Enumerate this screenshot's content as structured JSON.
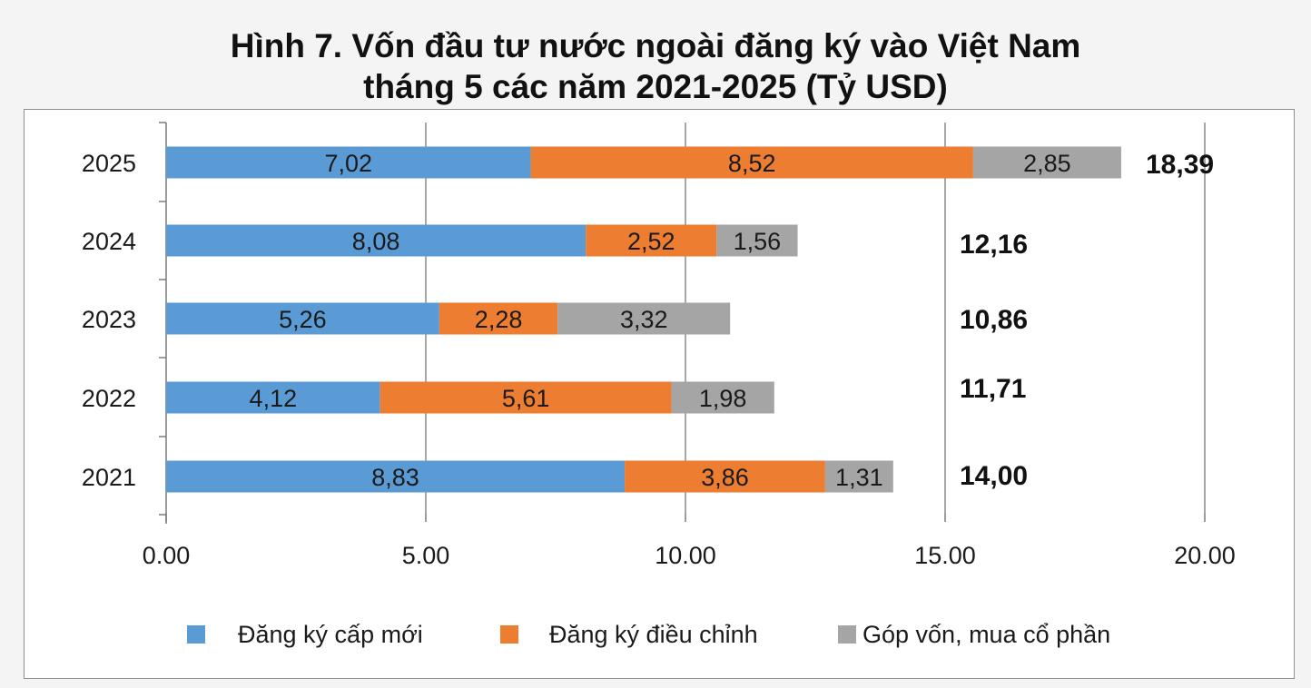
{
  "title": {
    "line1": "Hình 7. Vốn đầu tư nước ngoài đăng ký vào Việt Nam",
    "line2": "tháng 5 các năm 2021-2025 (Tỷ USD)"
  },
  "chart_data": {
    "type": "bar",
    "orientation": "horizontal",
    "stacked": true,
    "title": "Hình 7. Vốn đầu tư nước ngoài đăng ký vào Việt Nam tháng 5 các năm 2021-2025 (Tỷ USD)",
    "categories": [
      "2021",
      "2022",
      "2023",
      "2024",
      "2025"
    ],
    "series": [
      {
        "name": "Đăng ký cấp mới",
        "color": "#5b9bd5",
        "values": [
          8.83,
          4.12,
          5.26,
          8.08,
          7.02
        ],
        "labels": [
          "8,83",
          "4,12",
          "5,26",
          "8,08",
          "7,02"
        ]
      },
      {
        "name": "Đăng ký điều chỉnh",
        "color": "#ed7d31",
        "values": [
          3.86,
          5.61,
          2.28,
          2.52,
          8.52
        ],
        "labels": [
          "3,86",
          "5,61",
          "2,28",
          "2,52",
          "8,52"
        ]
      },
      {
        "name": "Góp vốn, mua cổ phần",
        "color": "#a5a5a5",
        "values": [
          1.31,
          1.98,
          3.32,
          1.56,
          2.85
        ],
        "labels": [
          "1,31",
          "1,98",
          "3,32",
          "1,56",
          "2,85"
        ]
      }
    ],
    "totals": [
      14.0,
      11.71,
      10.86,
      12.16,
      18.39
    ],
    "total_labels": [
      "14,00",
      "11,71",
      "10,86",
      "12,16",
      "18,39"
    ],
    "xlim": [
      0,
      20
    ],
    "xticks": [
      0,
      5,
      10,
      15,
      20
    ],
    "xtick_labels": [
      "0.00",
      "5.00",
      "10.00",
      "15.00",
      "20.00"
    ],
    "grid": "vertical",
    "legend_position": "bottom"
  }
}
